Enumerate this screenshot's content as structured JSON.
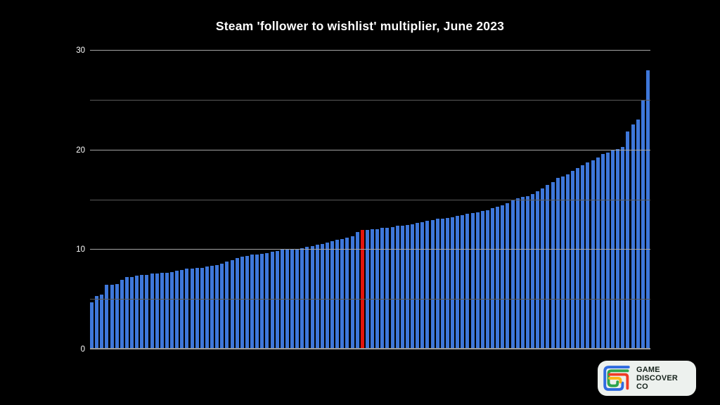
{
  "chart_data": {
    "type": "bar",
    "title": "Steam 'follower to wishlist' multiplier, June 2023",
    "xlabel": "",
    "ylabel": "",
    "ylim": [
      0,
      30
    ],
    "y_ticks": [
      0,
      10,
      20,
      30
    ],
    "gridline_values": [
      5,
      10,
      15,
      20,
      25,
      30
    ],
    "grid": true,
    "legend_position": "none",
    "x_axis_labels": "none",
    "bar_count": 112,
    "highlight_index": 54,
    "values": [
      4.7,
      5.4,
      5.5,
      6.5,
      6.5,
      6.6,
      7.0,
      7.3,
      7.3,
      7.4,
      7.5,
      7.5,
      7.6,
      7.6,
      7.7,
      7.7,
      7.8,
      7.9,
      8.0,
      8.1,
      8.1,
      8.2,
      8.2,
      8.3,
      8.4,
      8.5,
      8.6,
      8.8,
      9.0,
      9.2,
      9.3,
      9.4,
      9.5,
      9.5,
      9.6,
      9.7,
      9.8,
      9.9,
      10.0,
      10.0,
      10.1,
      10.1,
      10.2,
      10.3,
      10.4,
      10.5,
      10.6,
      10.7,
      10.9,
      11.0,
      11.1,
      11.2,
      11.4,
      11.8,
      12.0,
      12.0,
      12.1,
      12.1,
      12.2,
      12.2,
      12.3,
      12.4,
      12.4,
      12.5,
      12.6,
      12.7,
      12.8,
      12.9,
      13.0,
      13.1,
      13.1,
      13.2,
      13.3,
      13.4,
      13.5,
      13.6,
      13.7,
      13.8,
      13.9,
      14.0,
      14.2,
      14.3,
      14.5,
      14.7,
      15.0,
      15.2,
      15.3,
      15.4,
      15.6,
      15.9,
      16.2,
      16.5,
      16.8,
      17.2,
      17.4,
      17.6,
      17.9,
      18.2,
      18.5,
      18.8,
      19.0,
      19.3,
      19.6,
      19.8,
      20.0,
      20.1,
      20.3,
      21.9,
      22.6,
      23.1,
      25.0,
      28.0
    ],
    "colors": {
      "background": "#000000",
      "bar": "#3e77da",
      "highlight": "#e3150c",
      "major_gridline": "#a5a5a5",
      "minor_gridline": "#5a5a5a",
      "axis_line": "#9b9b9b",
      "title_text": "#ffffff",
      "tick_text": "#ffffff"
    }
  },
  "logo": {
    "lines": [
      "GAME",
      "DISCOVER",
      "CO"
    ],
    "background": "#edf1ee",
    "text_color": "#16231c",
    "mark_colors": {
      "blue": "#2f6be0",
      "green": "#2da44e",
      "yellow": "#fcb514",
      "red": "#ef3b24"
    }
  }
}
